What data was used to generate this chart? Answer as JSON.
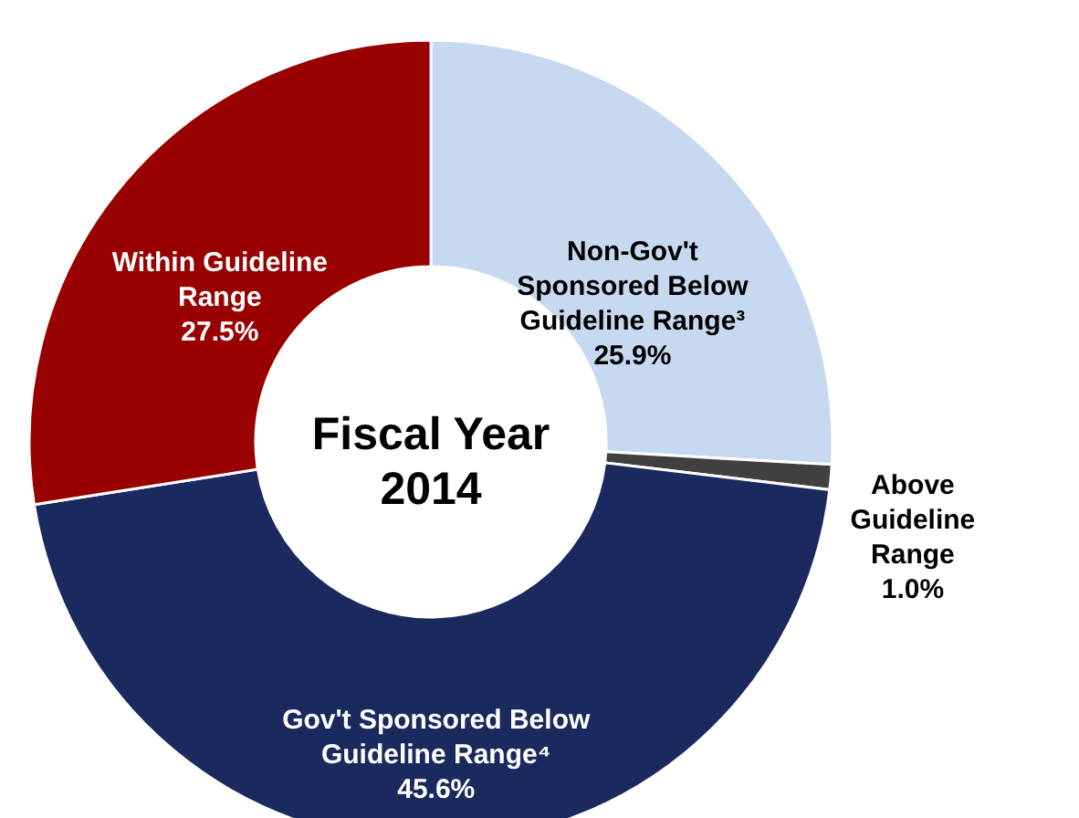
{
  "chart_data": {
    "type": "donut",
    "title": "Fiscal Year 2014",
    "categories": [
      "Non-Gov't Sponsored Below Guideline Range³",
      "Above Guideline Range",
      "Gov't Sponsored Below Guideline Range⁴",
      "Within Guideline Range"
    ],
    "values": [
      25.9,
      1.0,
      45.6,
      27.5
    ],
    "value_labels": [
      "25.9%",
      "1.0%",
      "45.6%",
      "27.5%"
    ],
    "colors": [
      "#c6d9f1",
      "#404040",
      "#1b2a5e",
      "#990000"
    ]
  }
}
